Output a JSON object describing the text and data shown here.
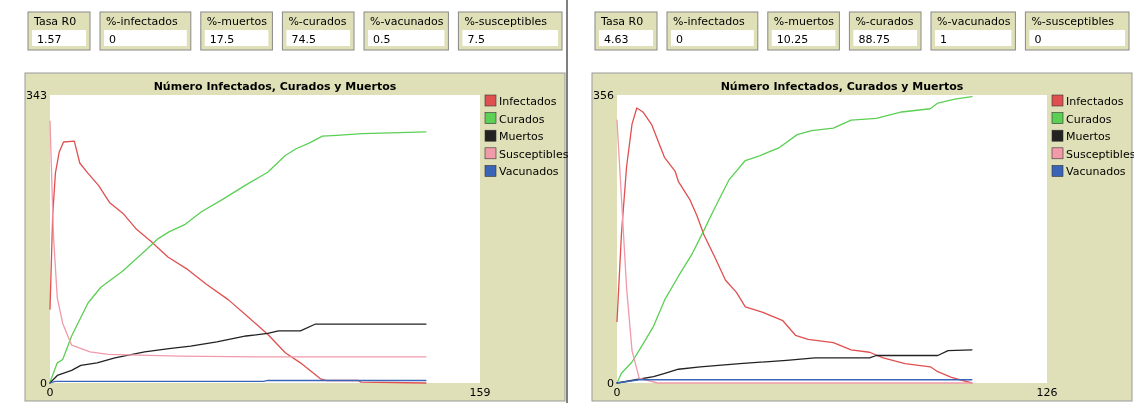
{
  "chart_data": [
    {
      "type": "line",
      "title": "Número Infectados, Curados y Muertos",
      "annotations": [
        "Tasa R0",
        "1.57",
        "%-infectados",
        "0",
        "%-muertos",
        "17.5",
        "%-curados",
        "74.5",
        "%-vacunados",
        "0.5",
        "%-susceptibles",
        "7.5"
      ],
      "xlim": [
        0,
        159
      ],
      "ylim": [
        0,
        343
      ],
      "xticks": [
        0,
        159
      ],
      "yticks": [
        0,
        343
      ],
      "legend": "right",
      "grid": false,
      "series": [
        {
          "name": "Infectados",
          "color": "#e05050",
          "x": [
            0,
            1,
            2,
            3.4,
            5,
            9,
            11,
            14,
            18,
            22,
            27,
            32,
            37.6,
            43.6,
            51,
            57.7,
            66,
            73.8,
            80.5,
            87,
            92.6,
            100,
            102,
            114,
            115,
            139
          ],
          "values": [
            88,
            200,
            250,
            275,
            287,
            288,
            262,
            250,
            235,
            215,
            202,
            183,
            168,
            150,
            135,
            118,
            99,
            77,
            58,
            36,
            24,
            5,
            3,
            3,
            1,
            0
          ]
        },
        {
          "name": "Curados",
          "color": "#5ccf55",
          "x": [
            0,
            2.7,
            4.7,
            8,
            14,
            18.8,
            26.8,
            35,
            40,
            44,
            50,
            56,
            64,
            72.5,
            80.5,
            87,
            91,
            96,
            100.7,
            106,
            115.4,
            139
          ],
          "values": [
            1,
            24,
            28,
            56,
            95,
            114,
            133,
            157,
            172,
            180,
            189,
            204,
            219,
            236,
            251,
            271,
            279,
            286,
            294,
            295,
            297,
            299
          ]
        },
        {
          "name": "Muertos",
          "color": "#222222",
          "x": [
            0,
            2.7,
            8,
            11.4,
            17.4,
            24,
            35,
            44,
            52,
            61.7,
            72.5,
            80.5,
            84.5,
            92.6,
            98,
            139
          ],
          "values": [
            0,
            9,
            15,
            21,
            24,
            30,
            37,
            41,
            44,
            49,
            56,
            59,
            62,
            62,
            70,
            70
          ]
        },
        {
          "name": "Susceptibles",
          "color": "#f09aaa",
          "x": [
            0,
            1.3,
            2.7,
            4.7,
            8,
            14.8,
            21.5,
            48,
            80.5,
            139
          ],
          "values": [
            312,
            174,
            101,
            71,
            45,
            37,
            34,
            32,
            31,
            31
          ]
        },
        {
          "name": "Vacunados",
          "color": "#3a64b8",
          "x": [
            0,
            2,
            79,
            80.5,
            139
          ],
          "values": [
            0,
            2,
            2,
            3,
            3
          ]
        }
      ]
    },
    {
      "type": "line",
      "title": "Número Infectados, Curados y Muertos",
      "annotations": [
        "Tasa R0",
        "4.63",
        "%-infectados",
        "0",
        "%-muertos",
        "10.25",
        "%-curados",
        "88.75",
        "%-vacunados",
        "1",
        "%-susceptibles",
        "0"
      ],
      "xlim": [
        0,
        126
      ],
      "ylim": [
        0,
        356
      ],
      "xticks": [
        0,
        126
      ],
      "yticks": [
        0,
        356
      ],
      "legend": "right",
      "grid": false,
      "series": [
        {
          "name": "Infectados",
          "color": "#e05050",
          "x": [
            0,
            1.3,
            2.8,
            4.4,
            5.8,
            7.6,
            10.2,
            13.9,
            17,
            18,
            21.3,
            23.4,
            25.5,
            28.6,
            31.8,
            35,
            37.6,
            42.3,
            48.6,
            52.3,
            56,
            63.4,
            68.6,
            74,
            78,
            84.4,
            91.8,
            94,
            98,
            104
          ],
          "values": [
            76,
            184,
            267,
            320,
            340,
            335,
            319,
            279,
            262,
            249,
            227,
            207,
            183,
            156,
            127,
            112,
            94,
            88,
            77,
            59,
            54,
            50,
            41,
            38,
            31,
            24,
            20,
            14,
            7,
            0
          ]
        },
        {
          "name": "Curados",
          "color": "#5ccf55",
          "x": [
            0,
            1.3,
            4.4,
            7.6,
            10.7,
            14,
            18,
            21.8,
            25.5,
            28.6,
            32.8,
            37.6,
            41.3,
            47.6,
            52.8,
            57,
            63.4,
            68.6,
            76,
            83.4,
            91.8,
            94,
            99,
            104
          ],
          "values": [
            0,
            12,
            26,
            48,
            70,
            103,
            132,
            158,
            189,
            216,
            251,
            275,
            280,
            291,
            307,
            312,
            315,
            325,
            327,
            335,
            339,
            346,
            351,
            354
          ]
        },
        {
          "name": "Muertos",
          "color": "#222222",
          "x": [
            0,
            5.5,
            10.7,
            14,
            18,
            24.4,
            36,
            49.7,
            58,
            74,
            76,
            94,
            97,
            104
          ],
          "values": [
            0,
            4,
            8,
            12,
            17,
            20,
            24,
            28,
            31,
            31,
            34,
            34,
            40,
            41
          ]
        },
        {
          "name": "Susceptibles",
          "color": "#f09aaa",
          "x": [
            0,
            1.3,
            2.8,
            4.4,
            6.5,
            11.8,
            104
          ],
          "values": [
            325,
            229,
            118,
            40,
            6,
            0,
            0
          ]
        },
        {
          "name": "Vacunados",
          "color": "#3a64b8",
          "x": [
            0,
            6.5,
            104
          ],
          "values": [
            0,
            4,
            4
          ]
        }
      ]
    }
  ]
}
